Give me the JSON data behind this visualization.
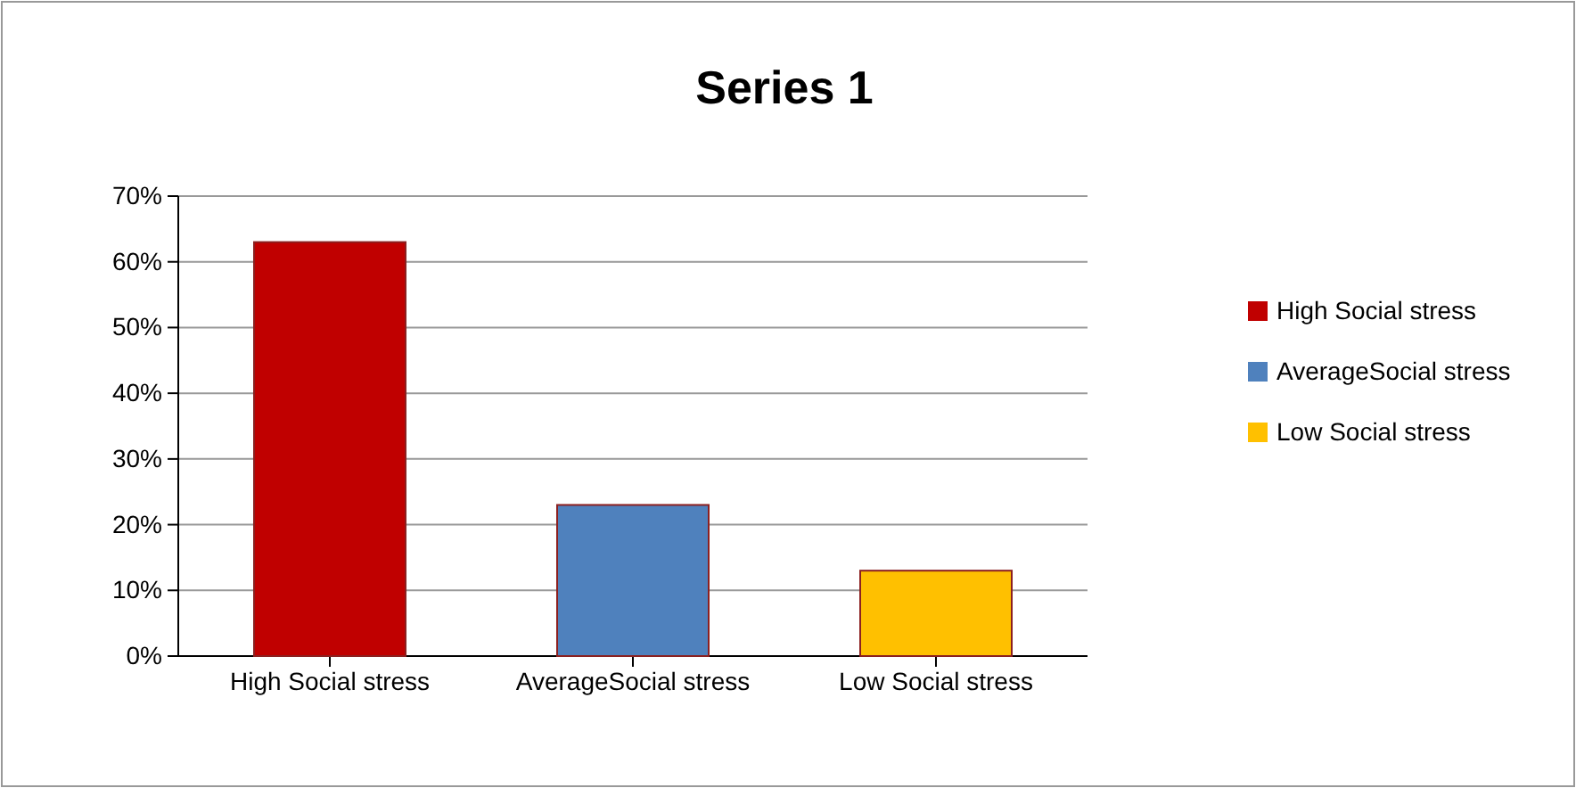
{
  "chart_data": {
    "type": "bar",
    "title": "Series 1",
    "categories": [
      "High Social stress",
      "AverageSocial stress",
      "Low Social stress"
    ],
    "series": [
      {
        "name": "High Social stress",
        "color": "#c00000",
        "values": [
          63,
          null,
          null
        ]
      },
      {
        "name": "AverageSocial stress",
        "color": "#4f81bd",
        "values": [
          null,
          23,
          null
        ]
      },
      {
        "name": "Low Social stress",
        "color": "#ffc000",
        "values": [
          null,
          null,
          13
        ]
      }
    ],
    "ylim": [
      0,
      70
    ],
    "yticks": [
      {
        "value": 0,
        "label": "0%"
      },
      {
        "value": 10,
        "label": "10%"
      },
      {
        "value": 20,
        "label": "20%"
      },
      {
        "value": 30,
        "label": "30%"
      },
      {
        "value": 40,
        "label": "40%"
      },
      {
        "value": 50,
        "label": "50%"
      },
      {
        "value": 60,
        "label": "60%"
      },
      {
        "value": 70,
        "label": "70%"
      }
    ],
    "grid": "y",
    "legend": "right"
  }
}
